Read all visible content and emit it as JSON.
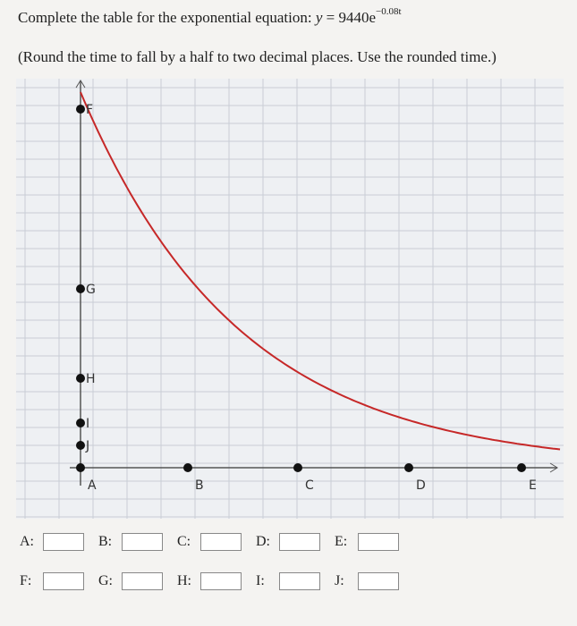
{
  "header": {
    "prompt": "Complete the table for the exponential equation:",
    "lhs": "y",
    "eq": "=",
    "base": "9440e",
    "exponent": "−0.08t",
    "instruction": "(Round the time to fall by a half to two decimal places. Use the rounded time.)"
  },
  "graph": {
    "points": [
      "A",
      "B",
      "C",
      "D",
      "E",
      "F",
      "G",
      "H",
      "I",
      "J"
    ]
  },
  "inputs": {
    "rows": [
      [
        "A:",
        "B:",
        "C:",
        "D:",
        "E:"
      ],
      [
        "F:",
        "G:",
        "H:",
        "I:",
        "J:"
      ]
    ]
  }
}
